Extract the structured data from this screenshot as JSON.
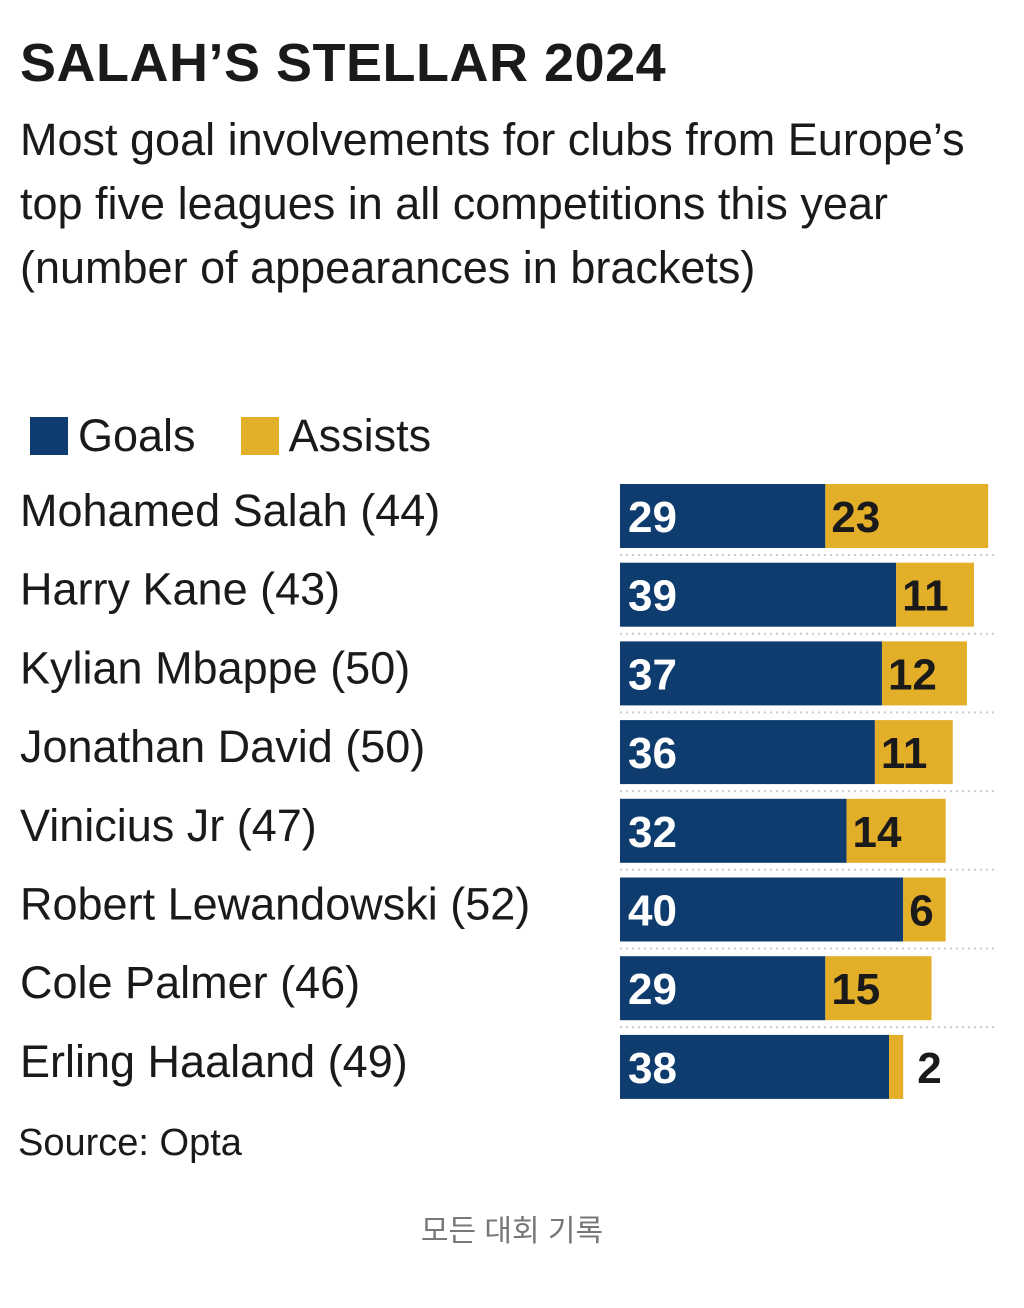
{
  "colors": {
    "goals": "#0e3c6e",
    "assists": "#e3ae28",
    "text": "#1a1a1a",
    "divider": "#cccccc"
  },
  "chart_data": {
    "type": "bar",
    "orientation": "horizontal",
    "stacked": true,
    "title": "SALAH’S STELLAR 2024",
    "subtitle": "Most goal involvements for clubs from Europe’s top five leagues in all competitions this year (number of appearances in brackets)",
    "legend_position": "top-left",
    "categories": [
      "Mohamed Salah (44)",
      "Harry Kane (43)",
      "Kylian Mbappe (50)",
      "Jonathan David (50)",
      "Vinicius Jr (47)",
      "Robert Lewandowski (52)",
      "Cole Palmer (46)",
      "Erling Haaland (49)"
    ],
    "series": [
      {
        "name": "Goals",
        "values": [
          29,
          39,
          37,
          36,
          32,
          40,
          29,
          38
        ]
      },
      {
        "name": "Assists",
        "values": [
          23,
          11,
          12,
          11,
          14,
          6,
          15,
          2
        ]
      }
    ],
    "source": "Source: Opta"
  },
  "caption": "모든 대회 기록"
}
